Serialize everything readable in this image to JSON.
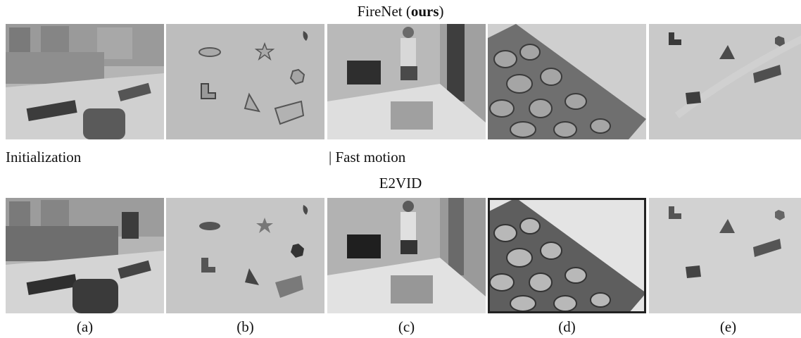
{
  "top_title": {
    "prefix": "FireNet (",
    "bold": "ours",
    "suffix": ")"
  },
  "bottom_title": "E2VID",
  "labels": {
    "initialization": "Initialization",
    "fast_motion": "| Fast motion"
  },
  "captions": [
    "(a)",
    "(b)",
    "(c)",
    "(d)",
    "(e)"
  ]
}
